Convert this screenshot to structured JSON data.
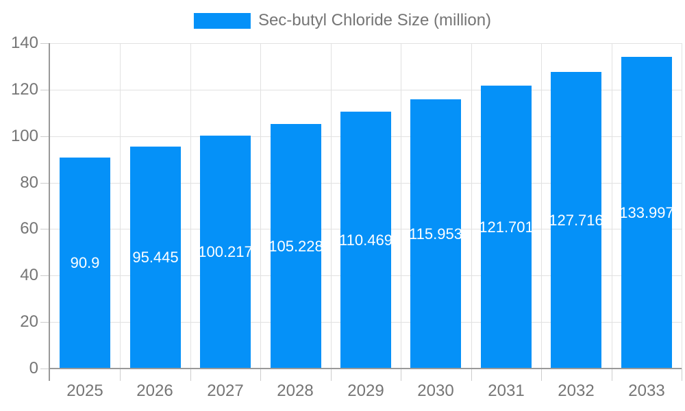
{
  "legend": {
    "label": "Sec-butyl Chloride Size (million)"
  },
  "colors": {
    "bar": "#0591f8",
    "axis_text": "#757575",
    "bar_label_text": "#ffffff",
    "axis_line": "#999999",
    "gridline": "#e1e1e1",
    "tick": "#cccccc",
    "background": "#ffffff"
  },
  "chart_data": {
    "type": "bar",
    "title": "Sec-butyl Chloride Size (million)",
    "categories": [
      "2025",
      "2026",
      "2027",
      "2028",
      "2029",
      "2030",
      "2031",
      "2032",
      "2033"
    ],
    "values": [
      90.9,
      95.445,
      100.217,
      105.228,
      110.469,
      115.953,
      121.701,
      127.716,
      133.997
    ],
    "value_labels": [
      "90.9",
      "95.445",
      "100.217",
      "105.228",
      "110.469",
      "115.953",
      "121.701",
      "127.716",
      "133.997"
    ],
    "xlabel": "",
    "ylabel": "",
    "ylim": [
      0,
      140
    ],
    "yticks": [
      0,
      20,
      40,
      60,
      80,
      100,
      120,
      140
    ],
    "grid": true,
    "legend_position": "top-center",
    "bar_label_position": "inside-middle"
  }
}
